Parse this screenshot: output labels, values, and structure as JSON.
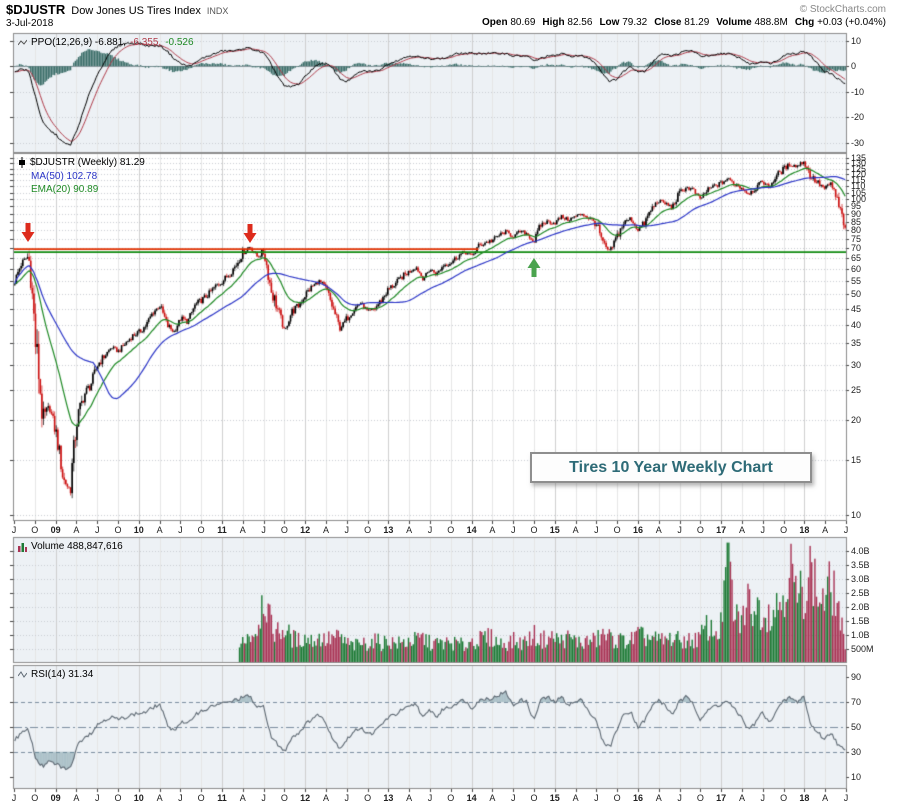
{
  "header": {
    "symbol": "$DJUSTR",
    "name": "Dow Jones US Tires Index",
    "exchange": "INDX",
    "copyright": "© StockCharts.com",
    "date": "3-Jul-2018",
    "quote": {
      "open_l": "Open",
      "open_v": "80.69",
      "high_l": "High",
      "high_v": "82.56",
      "low_l": "Low",
      "low_v": "79.32",
      "close_l": "Close",
      "close_v": "81.29",
      "vol_l": "Volume",
      "vol_v": "488.8M",
      "chg_l": "Chg",
      "chg_v": "+0.03 (+0.04%)"
    }
  },
  "panels": {
    "ppo": {
      "label_main": "PPO(12,26,9) -6.881,",
      "label_signal": "-6.355,",
      "label_hist": "-0.526"
    },
    "price": {
      "label_symbol": "$DJUSTR (Weekly) 81.29",
      "label_ma": "MA(50) 102.78",
      "label_ema": "EMA(20) 90.89"
    },
    "volume": {
      "label": "Volume 488,847,616"
    },
    "rsi": {
      "label": "RSI(14) 31.34"
    }
  },
  "colors": {
    "up": "#000000",
    "down": "#cc1111",
    "ma50": "#2b35c7",
    "ema20": "#1f8a25",
    "ppo": "#000000",
    "signal": "#b03a48",
    "hist": "#3d6f6a",
    "vol_up": "#1d7a35",
    "vol_down": "#a93354",
    "rsi": "#5f6a74",
    "resistance": "#e03000",
    "support": "#0f8a0f",
    "arrow_down": "#dd2b1c",
    "arrow_up": "#4aa34e",
    "grid": "#e6e6e6",
    "grid_year": "#cfcfcf",
    "panel_bg": "#edf1f5",
    "note_text": "#2e6b77"
  },
  "chart_data": {
    "type": "multi-panel candlestick",
    "timeframe": "weekly",
    "range": {
      "start": "Jul 2008",
      "end": "Jul 2018"
    },
    "x_ticks": [
      {
        "m": 0,
        "t": "J"
      },
      {
        "m": 3,
        "t": "O"
      },
      {
        "m": 6,
        "t": "09",
        "year": true
      },
      {
        "m": 9,
        "t": "A"
      },
      {
        "m": 12,
        "t": "J"
      },
      {
        "m": 15,
        "t": "O"
      },
      {
        "m": 18,
        "t": "10",
        "year": true
      },
      {
        "m": 21,
        "t": "A"
      },
      {
        "m": 24,
        "t": "J"
      },
      {
        "m": 27,
        "t": "O"
      },
      {
        "m": 30,
        "t": "11",
        "year": true
      },
      {
        "m": 33,
        "t": "A"
      },
      {
        "m": 36,
        "t": "J"
      },
      {
        "m": 39,
        "t": "O"
      },
      {
        "m": 42,
        "t": "12",
        "year": true
      },
      {
        "m": 45,
        "t": "A"
      },
      {
        "m": 48,
        "t": "J"
      },
      {
        "m": 51,
        "t": "O"
      },
      {
        "m": 54,
        "t": "13",
        "year": true
      },
      {
        "m": 57,
        "t": "A"
      },
      {
        "m": 60,
        "t": "J"
      },
      {
        "m": 63,
        "t": "O"
      },
      {
        "m": 66,
        "t": "14",
        "year": true
      },
      {
        "m": 69,
        "t": "A"
      },
      {
        "m": 72,
        "t": "J"
      },
      {
        "m": 75,
        "t": "O"
      },
      {
        "m": 78,
        "t": "15",
        "year": true
      },
      {
        "m": 81,
        "t": "A"
      },
      {
        "m": 84,
        "t": "J"
      },
      {
        "m": 87,
        "t": "O"
      },
      {
        "m": 90,
        "t": "16",
        "year": true
      },
      {
        "m": 93,
        "t": "A"
      },
      {
        "m": 96,
        "t": "J"
      },
      {
        "m": 99,
        "t": "O"
      },
      {
        "m": 102,
        "t": "17",
        "year": true
      },
      {
        "m": 105,
        "t": "A"
      },
      {
        "m": 108,
        "t": "J"
      },
      {
        "m": 111,
        "t": "O"
      },
      {
        "m": 114,
        "t": "18",
        "year": true
      },
      {
        "m": 117,
        "t": "A"
      },
      {
        "m": 120,
        "t": "J"
      }
    ],
    "price": {
      "type": "candlestick",
      "scale": "log",
      "ylim": [
        10,
        135
      ],
      "ticks": [
        135,
        130,
        125,
        120,
        115,
        110,
        105,
        100,
        95,
        90,
        85,
        80,
        75,
        70,
        65,
        60,
        55,
        50,
        45,
        40,
        35,
        30,
        25,
        20,
        15,
        10
      ],
      "monthly_close": [
        55,
        63,
        66,
        35,
        20,
        22,
        18,
        13,
        12,
        20,
        24,
        26,
        30,
        32,
        34,
        33,
        35,
        37,
        38,
        40,
        44,
        46,
        40,
        38,
        42,
        41,
        46,
        48,
        50,
        53,
        55,
        58,
        62,
        68,
        71,
        66,
        68,
        52,
        45,
        38,
        44,
        46,
        50,
        53,
        55,
        52,
        45,
        39,
        42,
        45,
        47,
        44,
        45,
        48,
        52,
        54,
        57,
        59,
        61,
        56,
        60,
        58,
        62,
        63,
        66,
        68,
        66,
        71,
        73,
        74,
        77,
        79,
        76,
        79,
        78,
        73,
        83,
        85,
        84,
        88,
        86,
        88,
        90,
        87,
        84,
        72,
        68,
        76,
        84,
        87,
        80,
        84,
        93,
        99,
        97,
        94,
        104,
        109,
        107,
        100,
        106,
        110,
        112,
        116,
        112,
        109,
        104,
        108,
        114,
        109,
        118,
        124,
        129,
        127,
        132,
        118,
        113,
        108,
        112,
        96,
        81.29
      ],
      "last_close": 81.29,
      "ma50_last": 102.78,
      "ema20_last": 90.89
    },
    "ppo": {
      "type": "line+histogram",
      "params": "12,26,9",
      "ylim": [
        -30,
        10
      ],
      "ticks": [
        10,
        0,
        -10,
        -20,
        -30
      ],
      "monthly": [
        -2,
        -1,
        -2,
        -12,
        -22,
        -25,
        -27,
        -30,
        -31,
        -25,
        -17,
        -9,
        -3,
        2,
        6,
        8,
        9,
        9,
        9,
        8,
        8,
        8,
        6,
        3,
        1,
        0,
        1,
        3,
        4,
        5,
        6,
        6,
        6,
        7,
        7,
        6,
        5,
        1,
        -4,
        -8,
        -8,
        -7,
        -4,
        -1,
        1,
        1,
        -1,
        -5,
        -6,
        -4,
        -2,
        -2,
        -2,
        -1,
        1,
        2,
        3,
        4,
        4,
        3,
        3,
        3,
        3,
        4,
        5,
        5,
        5,
        5,
        5,
        5,
        5,
        5,
        4,
        4,
        4,
        2,
        3,
        4,
        4,
        5,
        4,
        4,
        4,
        3,
        1,
        -3,
        -6,
        -5,
        -2,
        0,
        -2,
        -2,
        1,
        4,
        5,
        4,
        5,
        6,
        6,
        4,
        4,
        4,
        5,
        5,
        4,
        3,
        1,
        1,
        2,
        1,
        2,
        4,
        5,
        5,
        6,
        4,
        1,
        -2,
        -3,
        -5,
        -6.881
      ],
      "last": -6.881,
      "last_signal": -6.355,
      "last_hist": -0.526
    },
    "volume": {
      "type": "bar",
      "ticks": [
        {
          "v": 4.0,
          "t": "4.0B"
        },
        {
          "v": 3.5,
          "t": "3.5B"
        },
        {
          "v": 3.0,
          "t": "3.0B"
        },
        {
          "v": 2.5,
          "t": "2.5B"
        },
        {
          "v": 2.0,
          "t": "2.0B"
        },
        {
          "v": 1.5,
          "t": "1.5B"
        },
        {
          "v": 1.0,
          "t": "1.0B"
        },
        {
          "v": 0.5,
          "t": "500M"
        }
      ],
      "monthly_b": [
        0,
        0,
        0,
        0,
        0,
        0,
        0,
        0,
        0,
        0,
        0,
        0,
        0,
        0,
        0,
        0,
        0,
        0,
        0,
        0,
        0,
        0,
        0,
        0,
        0,
        0,
        0,
        0,
        0,
        0,
        0,
        0,
        0,
        0.9,
        1.0,
        1.2,
        2.6,
        1.3,
        1.1,
        1.2,
        0.9,
        0.8,
        0.9,
        0.8,
        0.9,
        0.8,
        0.9,
        0.9,
        0.7,
        0.6,
        0.7,
        0.7,
        0.8,
        0.7,
        0.8,
        0.7,
        0.7,
        0.8,
        0.8,
        0.9,
        0.7,
        0.7,
        0.7,
        0.7,
        0.7,
        0.6,
        0.8,
        0.8,
        0.9,
        0.9,
        0.7,
        0.7,
        0.8,
        0.7,
        0.8,
        1.0,
        0.8,
        0.9,
        0.9,
        0.8,
        0.9,
        0.8,
        0.7,
        0.8,
        0.8,
        1.0,
        0.9,
        0.8,
        0.8,
        0.8,
        1.0,
        0.9,
        0.9,
        0.8,
        0.8,
        0.9,
        0.8,
        0.8,
        0.8,
        0.9,
        1.3,
        1.1,
        1.2,
        4.1,
        1.6,
        1.5,
        2.2,
        2.0,
        1.9,
        1.8,
        2.0,
        2.4,
        3.6,
        2.2,
        2.6,
        3.4,
        2.4,
        2.2,
        2.8,
        2.0,
        0.489
      ],
      "last_b": 0.489,
      "last_label": "488,847,616"
    },
    "rsi": {
      "type": "line",
      "params": 14,
      "ylim": [
        0,
        100
      ],
      "ticks": [
        90,
        70,
        50,
        30,
        10
      ],
      "overbought": 70,
      "oversold": 30,
      "monthly": [
        40,
        45,
        48,
        25,
        18,
        22,
        20,
        17,
        16,
        35,
        42,
        45,
        52,
        56,
        58,
        56,
        58,
        60,
        61,
        62,
        66,
        68,
        52,
        47,
        54,
        52,
        60,
        63,
        65,
        68,
        69,
        70,
        72,
        74,
        75,
        65,
        67,
        42,
        36,
        30,
        42,
        45,
        52,
        57,
        60,
        53,
        40,
        33,
        40,
        46,
        50,
        44,
        46,
        52,
        58,
        60,
        64,
        66,
        69,
        57,
        64,
        58,
        65,
        66,
        70,
        72,
        65,
        71,
        73,
        73,
        76,
        78,
        67,
        72,
        70,
        55,
        72,
        74,
        70,
        74,
        68,
        70,
        72,
        62,
        55,
        38,
        34,
        48,
        60,
        63,
        50,
        55,
        66,
        72,
        67,
        60,
        70,
        74,
        70,
        56,
        62,
        67,
        68,
        71,
        64,
        58,
        48,
        53,
        62,
        53,
        63,
        70,
        74,
        70,
        75,
        52,
        46,
        40,
        46,
        35,
        31.34
      ],
      "last": 31.34
    },
    "annotations": {
      "resistance_line": {
        "value": 69.5,
        "from_month": 0,
        "to_month": 67
      },
      "support_line": {
        "value": 68
      },
      "arrows": [
        {
          "month": 2,
          "value": 73,
          "dir": "down"
        },
        {
          "month": 34,
          "value": 72.5,
          "dir": "down"
        },
        {
          "month": 75,
          "value": 65,
          "dir": "up"
        }
      ],
      "note": {
        "text": "Tires 10 Year Weekly Chart"
      }
    }
  }
}
